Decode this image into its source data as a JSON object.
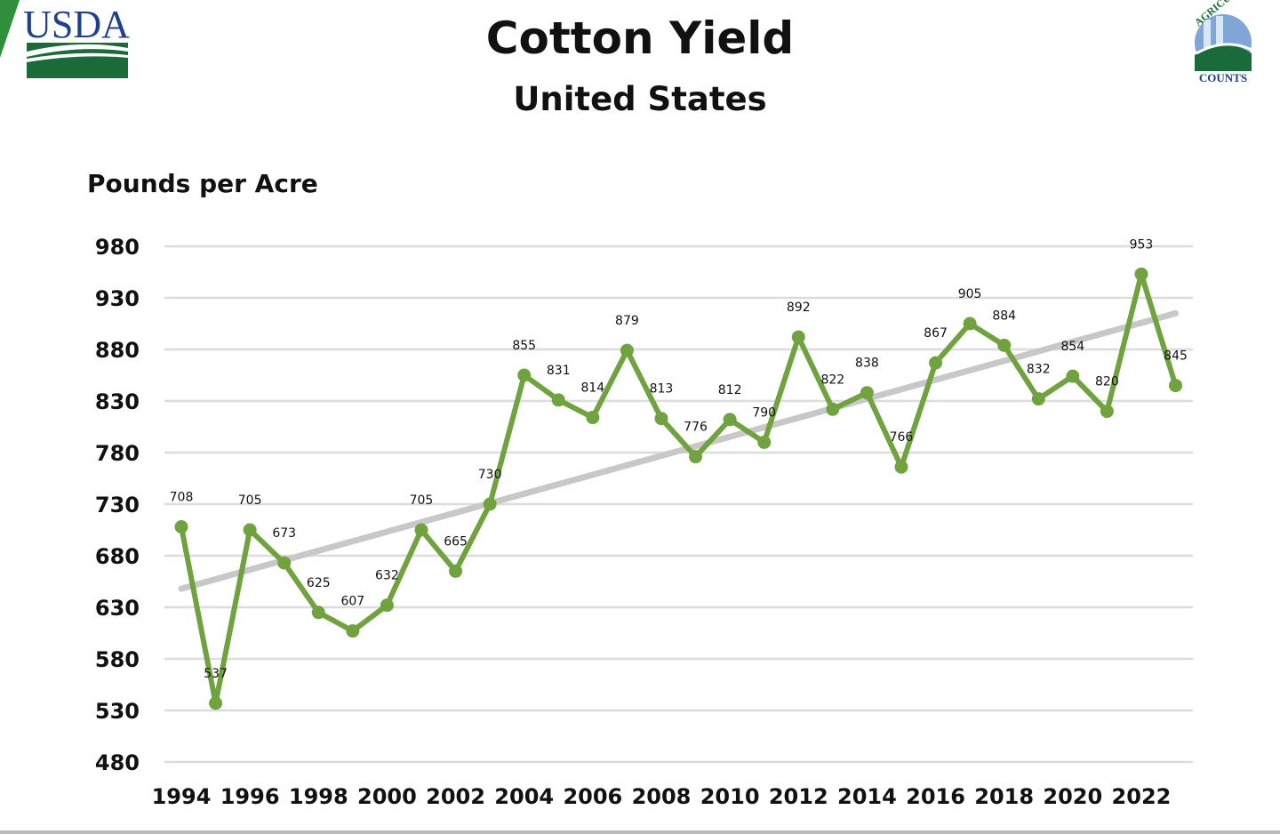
{
  "logos": {
    "left": "USDA",
    "right": "AGRICULTURE COUNTS"
  },
  "chart_data": {
    "type": "line",
    "title": "Cotton Yield",
    "subtitle": "United States",
    "ylabel": "Pounds per Acre",
    "xlabel": "",
    "ylim": [
      480,
      980
    ],
    "yticks": [
      480,
      530,
      580,
      630,
      680,
      730,
      780,
      830,
      880,
      930,
      980
    ],
    "xticks": [
      1994,
      1996,
      1998,
      2000,
      2002,
      2004,
      2006,
      2008,
      2010,
      2012,
      2014,
      2016,
      2018,
      2020,
      2022
    ],
    "grid": true,
    "x": [
      1994,
      1995,
      1996,
      1997,
      1998,
      1999,
      2000,
      2001,
      2002,
      2003,
      2004,
      2005,
      2006,
      2007,
      2008,
      2009,
      2010,
      2011,
      2012,
      2013,
      2014,
      2015,
      2016,
      2017,
      2018,
      2019,
      2020,
      2021,
      2022,
      2023
    ],
    "values": [
      708,
      537,
      705,
      673,
      625,
      607,
      632,
      705,
      665,
      730,
      855,
      831,
      814,
      879,
      813,
      776,
      812,
      790,
      892,
      822,
      838,
      766,
      867,
      905,
      884,
      832,
      854,
      820,
      953,
      845
    ],
    "trendline": {
      "type": "linear",
      "start": 648,
      "end": 915
    },
    "colors": {
      "series": "#70a340",
      "trend": "#c8c8c8",
      "grid": "#dcdcdc"
    }
  }
}
